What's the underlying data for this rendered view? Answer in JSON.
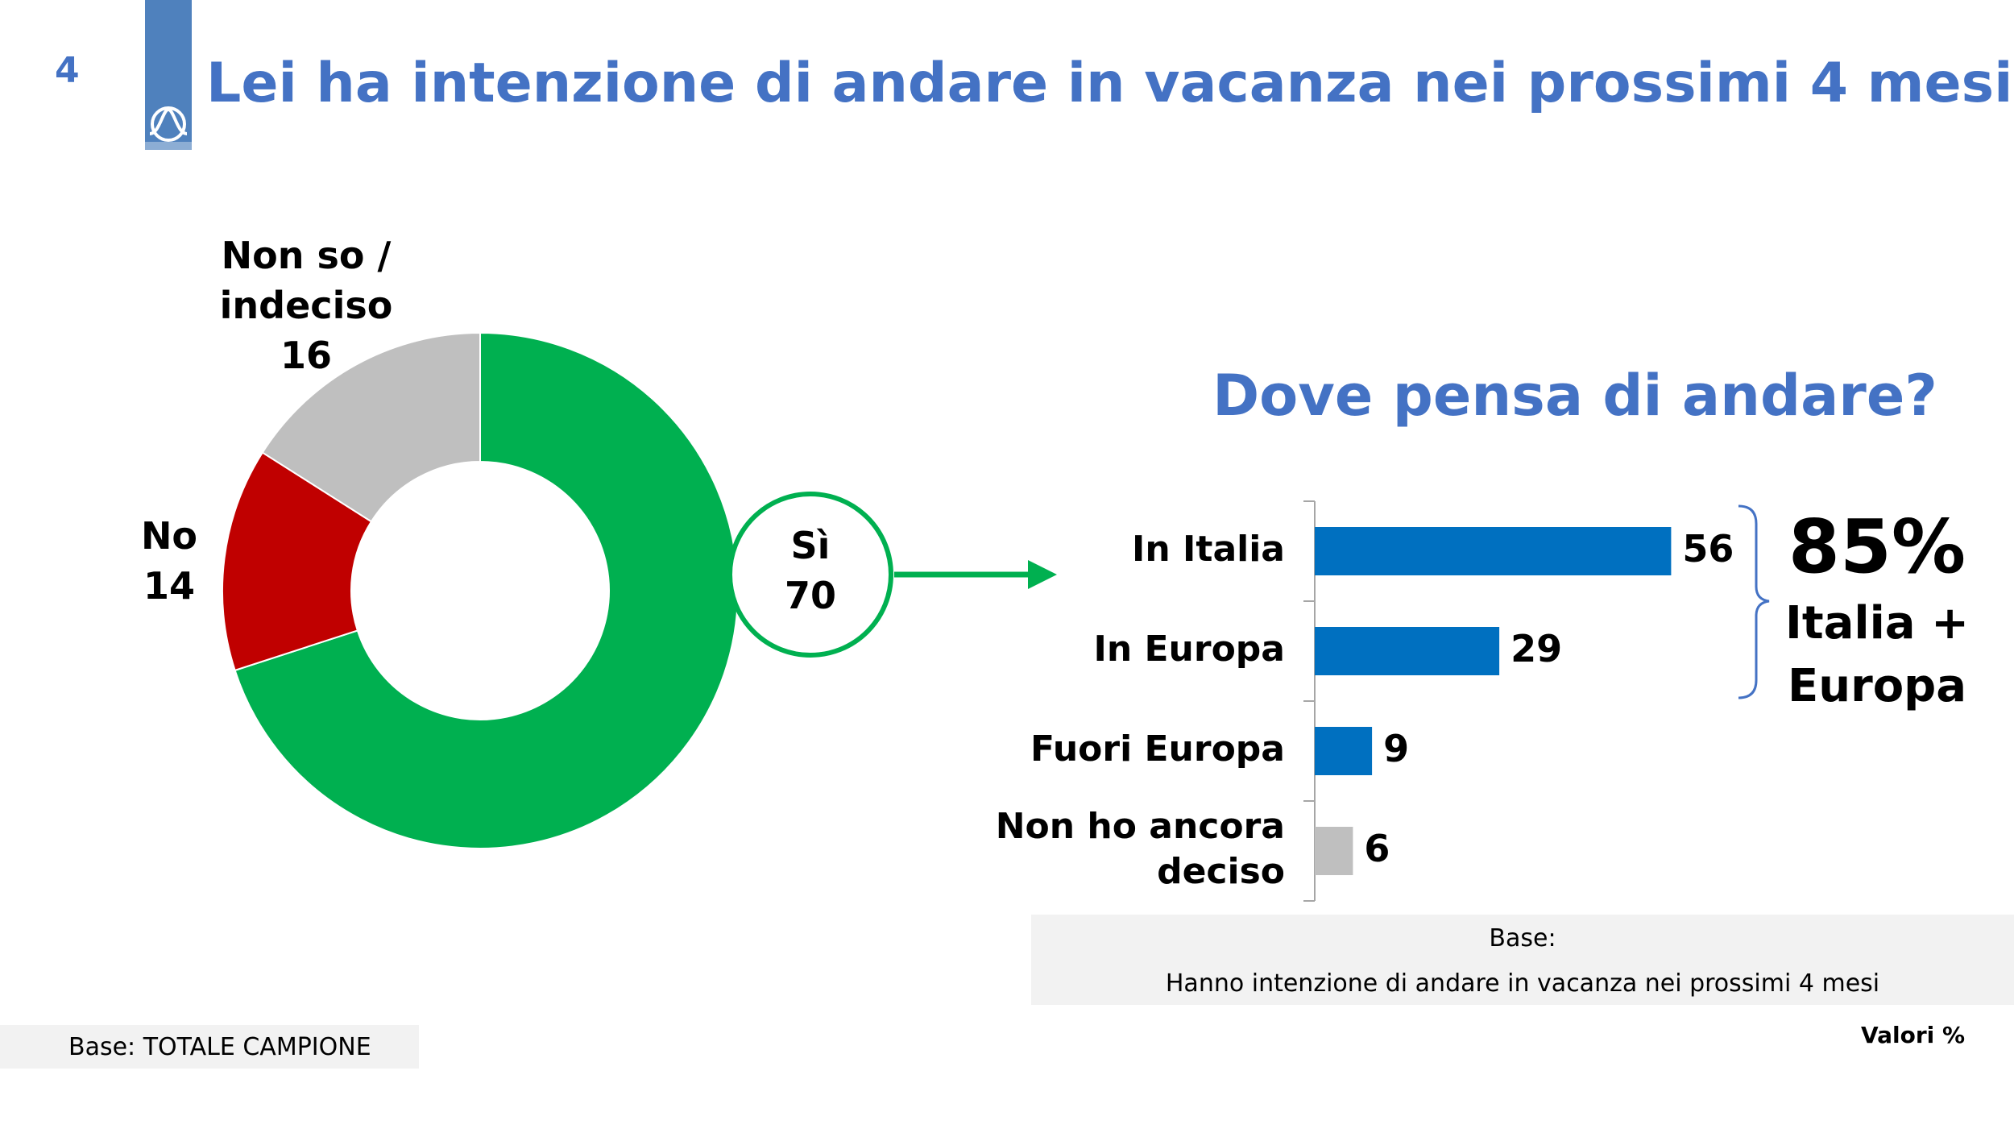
{
  "header": {
    "slide_number": "4",
    "title": "Lei ha intenzione di andare in vacanza nei prossimi 4 mesi?"
  },
  "colors": {
    "accent": "#4472C4",
    "yes": "#00B050",
    "no": "#C00000",
    "undecided": "#BFBFBF",
    "bar": "#0070C0"
  },
  "chart_data": [
    {
      "type": "pie",
      "donut": true,
      "categories": [
        "Sì",
        "No",
        "Non so / indeciso"
      ],
      "values": [
        70,
        14,
        16
      ],
      "labels": {
        "yes": {
          "name": "Sì",
          "value": "70"
        },
        "no": {
          "name": "No",
          "value": "14"
        },
        "undecided": {
          "name_line1": "Non so /",
          "name_line2": "indeciso",
          "value": "16"
        }
      }
    },
    {
      "type": "bar",
      "orientation": "horizontal",
      "title": "Dove pensa di andare?",
      "categories": [
        "In Italia",
        "In Europa",
        "Fuori Europa",
        "Non ho ancora deciso"
      ],
      "category_lines": [
        [
          "In Italia"
        ],
        [
          "In Europa"
        ],
        [
          "Fuori Europa"
        ],
        [
          "Non ho ancora",
          "deciso"
        ]
      ],
      "values": [
        56,
        29,
        9,
        6
      ],
      "value_labels": [
        "56",
        "29",
        "9",
        "6"
      ]
    }
  ],
  "callout": {
    "value": "85%",
    "line1": "Italia +",
    "line2": "Europa"
  },
  "base_right": {
    "label": "Base:",
    "text": "Hanno intenzione di andare in vacanza nei prossimi 4 mesi"
  },
  "base_left": "Base: TOTALE CAMPIONE",
  "units_note": "Valori %"
}
